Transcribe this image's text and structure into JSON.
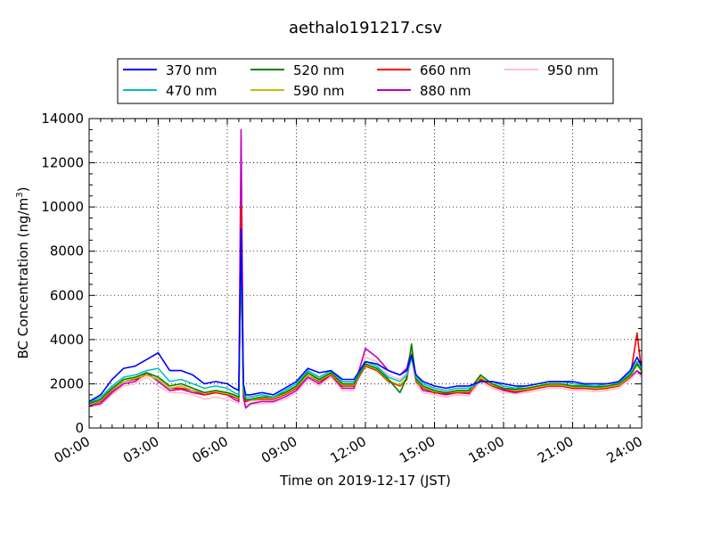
{
  "chart_data": {
    "type": "line",
    "title": "aethalo191217.csv",
    "xlabel": "Time on 2019-12-17 (JST)",
    "ylabel": "BC Concentration (ng/m",
    "ylabel_sup": "3",
    "ylabel_end": ")",
    "xlim": [
      0,
      24
    ],
    "ylim": [
      0,
      14000
    ],
    "grid": true,
    "legend_position": "top (outside plot)",
    "x_tick_values": [
      0,
      3,
      6,
      9,
      12,
      15,
      18,
      21,
      24
    ],
    "x_tick_labels": [
      "00:00",
      "03:00",
      "06:00",
      "09:00",
      "12:00",
      "15:00",
      "18:00",
      "21:00",
      "24:00"
    ],
    "y_tick_values": [
      0,
      2000,
      4000,
      6000,
      8000,
      10000,
      12000,
      14000
    ],
    "y_tick_labels": [
      "0",
      "2000",
      "4000",
      "6000",
      "8000",
      "10000",
      "12000",
      "14000"
    ],
    "x": [
      0,
      0.5,
      1,
      1.5,
      2,
      2.5,
      3,
      3.5,
      4,
      4.5,
      5,
      5.5,
      6,
      6.3,
      6.5,
      6.6,
      6.7,
      6.8,
      7,
      7.5,
      8,
      8.5,
      9,
      9.5,
      10,
      10.5,
      11,
      11.5,
      12,
      12.5,
      13,
      13.5,
      13.8,
      14,
      14.2,
      14.5,
      15,
      15.5,
      16,
      16.5,
      17,
      17.5,
      18,
      18.5,
      19,
      19.5,
      20,
      20.5,
      21,
      21.5,
      22,
      22.5,
      23,
      23.5,
      23.8,
      24
    ],
    "series": [
      {
        "name": "370 nm",
        "color": "#0000ff",
        "values": [
          1200,
          1500,
          2200,
          2700,
          2800,
          3100,
          3400,
          2600,
          2600,
          2400,
          2000,
          2100,
          2000,
          1800,
          1700,
          9000,
          2000,
          1500,
          1500,
          1600,
          1500,
          1800,
          2100,
          2700,
          2500,
          2600,
          2200,
          2200,
          3000,
          2900,
          2600,
          2400,
          2600,
          3300,
          2400,
          2100,
          1900,
          1800,
          1900,
          1900,
          2100,
          2100,
          2000,
          1900,
          1900,
          2000,
          2100,
          2100,
          2100,
          2000,
          2000,
          2000,
          2100,
          2600,
          3200,
          2800
        ]
      },
      {
        "name": "470 nm",
        "color": "#00bfbf",
        "values": [
          1150,
          1400,
          1900,
          2300,
          2400,
          2600,
          2700,
          2100,
          2200,
          2000,
          1800,
          1900,
          1800,
          1600,
          1500,
          8000,
          1800,
          1400,
          1400,
          1500,
          1400,
          1700,
          2000,
          2600,
          2300,
          2600,
          2100,
          2100,
          3000,
          2800,
          2300,
          2100,
          2400,
          3200,
          2300,
          2000,
          1800,
          1700,
          1800,
          1800,
          2100,
          2100,
          1900,
          1800,
          1900,
          2000,
          2100,
          2100,
          2000,
          1950,
          1900,
          2000,
          2050,
          2500,
          3000,
          2700
        ]
      },
      {
        "name": "520 nm",
        "color": "#008000",
        "values": [
          1100,
          1300,
          1800,
          2200,
          2300,
          2500,
          2300,
          1900,
          2000,
          1800,
          1600,
          1700,
          1600,
          1500,
          1400,
          8000,
          1700,
          1300,
          1300,
          1400,
          1400,
          1600,
          1900,
          2500,
          2200,
          2500,
          2000,
          2000,
          2900,
          2700,
          2200,
          1600,
          2300,
          3800,
          2200,
          1900,
          1700,
          1600,
          1700,
          1700,
          2400,
          2000,
          1800,
          1750,
          1800,
          1900,
          2000,
          2000,
          1900,
          1900,
          1850,
          1900,
          2000,
          2400,
          2900,
          2600
        ]
      },
      {
        "name": "590 nm",
        "color": "#bfbf00",
        "values": [
          1050,
          1250,
          1750,
          2100,
          2250,
          2400,
          2200,
          1800,
          1900,
          1700,
          1600,
          1650,
          1550,
          1450,
          1350,
          8500,
          1650,
          1300,
          1250,
          1350,
          1350,
          1550,
          1850,
          2400,
          2150,
          2450,
          1950,
          1950,
          2850,
          2650,
          2150,
          1950,
          2250,
          3500,
          2150,
          1850,
          1650,
          1600,
          1650,
          1650,
          2300,
          1950,
          1800,
          1700,
          1750,
          1850,
          1950,
          1950,
          1850,
          1850,
          1800,
          1850,
          1950,
          2350,
          2850,
          2550
        ]
      },
      {
        "name": "660 nm",
        "color": "#ff0000",
        "values": [
          1050,
          1200,
          1700,
          2100,
          2200,
          2400,
          2200,
          1800,
          1800,
          1700,
          1500,
          1600,
          1500,
          1400,
          1300,
          10000,
          1600,
          1200,
          1250,
          1300,
          1300,
          1500,
          1800,
          2400,
          2100,
          2400,
          1900,
          1900,
          2800,
          2600,
          2100,
          1900,
          2200,
          3400,
          2100,
          1800,
          1600,
          1550,
          1600,
          1600,
          2200,
          1900,
          1750,
          1650,
          1700,
          1800,
          1900,
          1900,
          1800,
          1800,
          1750,
          1800,
          1900,
          2300,
          4300,
          2500
        ]
      },
      {
        "name": "880 nm",
        "color": "#bf00bf",
        "values": [
          1000,
          1100,
          1600,
          2000,
          2100,
          2500,
          2100,
          1700,
          1750,
          1600,
          1500,
          1600,
          1500,
          1300,
          1200,
          13500,
          1400,
          900,
          1100,
          1200,
          1200,
          1400,
          1700,
          2300,
          2000,
          2400,
          1800,
          1800,
          3600,
          3200,
          2600,
          2400,
          2700,
          3600,
          2200,
          1700,
          1600,
          1500,
          1600,
          1550,
          2300,
          1900,
          1700,
          1600,
          1700,
          1800,
          1900,
          1900,
          1800,
          1800,
          1750,
          1800,
          1900,
          2300,
          2600,
          2400
        ]
      },
      {
        "name": "950 nm",
        "color": "#ffc0cb",
        "values": [
          950,
          1050,
          1500,
          1900,
          2000,
          2300,
          1900,
          1600,
          1600,
          1500,
          1300,
          1400,
          1300,
          1200,
          1100,
          8000,
          1300,
          1000,
          1050,
          1100,
          1150,
          1300,
          1600,
          2200,
          1900,
          2300,
          1700,
          1700,
          3200,
          3000,
          2400,
          2200,
          2500,
          3100,
          2000,
          1600,
          1500,
          1400,
          1500,
          1450,
          2100,
          1800,
          1600,
          1550,
          1600,
          1700,
          1800,
          1800,
          1700,
          1700,
          1650,
          1700,
          1800,
          2200,
          2500,
          2300
        ]
      }
    ]
  }
}
